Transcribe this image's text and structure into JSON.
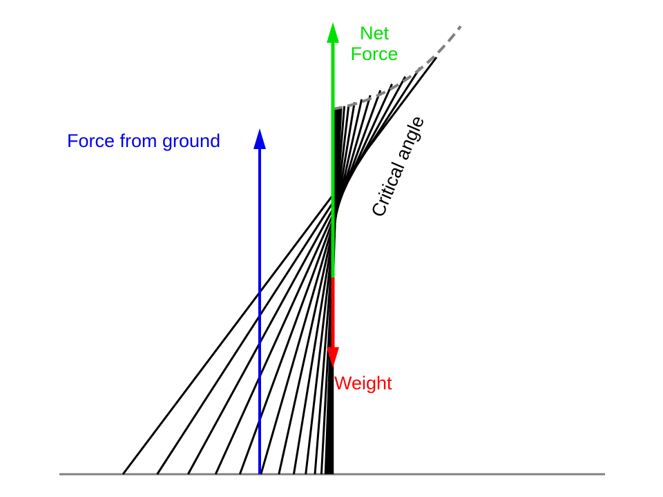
{
  "labels": {
    "force_from_ground": "Force from ground",
    "net_force_line1": "Net",
    "net_force_line2": "Force",
    "weight": "Weight",
    "critical_angle": "Critical angle"
  },
  "colors": {
    "ground_force": "#0000ee",
    "net_force": "#00e000",
    "weight": "#ff0000",
    "lines": "#000000",
    "ground": "#808080",
    "envelope": "#808080"
  }
}
